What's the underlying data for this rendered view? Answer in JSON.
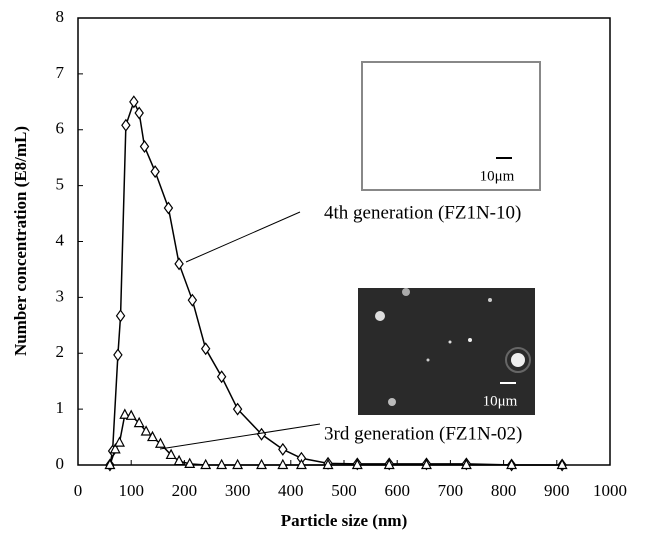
{
  "chart_data": {
    "type": "line",
    "xlabel": "Particle size (nm)",
    "ylabel": "Number concentration (E8/mL)",
    "xlim": [
      0,
      1000
    ],
    "xticks": [
      0,
      100,
      200,
      300,
      400,
      500,
      600,
      700,
      800,
      900,
      1000
    ],
    "ylim": [
      0,
      8
    ],
    "yticks": [
      0,
      1,
      2,
      3,
      4,
      5,
      6,
      7,
      8
    ],
    "series": [
      {
        "name": "4th generation (FZ1N-10)",
        "color": "#000000",
        "marker": "diamond",
        "x": [
          60,
          65,
          75,
          80,
          90,
          105,
          115,
          125,
          145,
          170,
          190,
          215,
          240,
          270,
          300,
          345,
          385,
          420,
          470,
          525,
          585,
          655,
          730,
          815,
          910
        ],
        "values": [
          0,
          0.25,
          1.97,
          2.67,
          6.08,
          6.5,
          6.3,
          5.7,
          5.25,
          4.6,
          3.6,
          2.95,
          2.08,
          1.58,
          1.0,
          0.55,
          0.28,
          0.12,
          0.03,
          0.02,
          0.02,
          0.02,
          0.02,
          0,
          0
        ]
      },
      {
        "name": "3rd generation (FZ1N-02)",
        "color": "#000000",
        "marker": "triangle",
        "x": [
          60,
          70,
          78,
          88,
          100,
          115,
          128,
          140,
          155,
          175,
          190,
          210,
          240,
          270,
          300,
          345,
          385,
          420,
          470,
          525,
          585,
          655,
          730,
          815,
          910
        ],
        "values": [
          0,
          0.28,
          0.4,
          0.9,
          0.88,
          0.75,
          0.6,
          0.5,
          0.38,
          0.18,
          0.07,
          0.02,
          0,
          0,
          0,
          0,
          0,
          0,
          0,
          0,
          0,
          0,
          0,
          0,
          0
        ]
      }
    ],
    "insets": [
      {
        "scale_label": "10μm"
      },
      {
        "scale_label": "10μm"
      }
    ]
  }
}
